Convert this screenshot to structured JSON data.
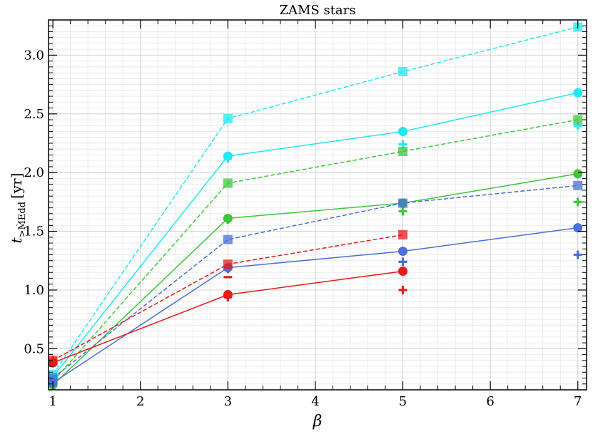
{
  "chart_data": {
    "type": "line",
    "title": "ZAMS stars",
    "xlabel": "β",
    "ylabel": {
      "main": "t",
      "sub": ">Ṁ",
      "sub2": "Edd",
      "unit": "[yr]"
    },
    "xlim": [
      0.95,
      7.1
    ],
    "ylim": [
      0.15,
      3.3
    ],
    "x_ticks": [
      1,
      2,
      3,
      4,
      5,
      6,
      7
    ],
    "y_ticks": [
      0.5,
      1.0,
      1.5,
      2.0,
      2.5,
      3.0
    ],
    "x_tick_labels": [
      "1",
      "2",
      "3",
      "4",
      "5",
      "6",
      "7"
    ],
    "y_tick_labels": [
      "0.5",
      "1.0",
      "1.5",
      "2.0",
      "2.5",
      "3.0"
    ],
    "grid": true,
    "colors": {
      "cyan": "#22e8f0",
      "green": "#3cc83c",
      "blue": "#4a6fd8",
      "red": "#e81a1a"
    },
    "series": [
      {
        "color": "cyan",
        "marker": "square",
        "dash": true,
        "x": [
          1,
          3,
          5,
          7
        ],
        "y": [
          0.28,
          2.46,
          2.86,
          3.24
        ]
      },
      {
        "color": "cyan",
        "marker": "circle",
        "dash": false,
        "x": [
          1,
          3,
          5,
          7
        ],
        "y": [
          0.26,
          2.14,
          2.35,
          2.68
        ]
      },
      {
        "color": "cyan",
        "marker": "plus",
        "dash": false,
        "x": [
          3,
          5,
          7
        ],
        "y": [
          2.12,
          2.24,
          2.4
        ]
      },
      {
        "color": "green",
        "marker": "square",
        "dash": true,
        "x": [
          1,
          3,
          5,
          7
        ],
        "y": [
          0.22,
          1.91,
          2.18,
          2.45
        ]
      },
      {
        "color": "green",
        "marker": "circle",
        "dash": false,
        "x": [
          1,
          3,
          5,
          7
        ],
        "y": [
          0.19,
          1.61,
          1.74,
          1.99
        ]
      },
      {
        "color": "green",
        "marker": "plus",
        "dash": false,
        "x": [
          3,
          5,
          7
        ],
        "y": [
          1.6,
          1.67,
          1.75
        ]
      },
      {
        "color": "blue",
        "marker": "square",
        "dash": true,
        "x": [
          1,
          3,
          5,
          7
        ],
        "y": [
          0.25,
          1.43,
          1.74,
          1.89
        ]
      },
      {
        "color": "blue",
        "marker": "circle",
        "dash": false,
        "x": [
          1,
          3,
          5,
          7
        ],
        "y": [
          0.21,
          1.19,
          1.33,
          1.53
        ]
      },
      {
        "color": "blue",
        "marker": "plus",
        "dash": false,
        "x": [
          3,
          5,
          7
        ],
        "y": [
          1.18,
          1.24,
          1.3
        ]
      },
      {
        "color": "red",
        "marker": "square",
        "dash": true,
        "x": [
          1,
          3,
          5
        ],
        "y": [
          0.4,
          1.22,
          1.47
        ]
      },
      {
        "color": "red",
        "marker": "circle",
        "dash": false,
        "x": [
          1,
          3,
          5
        ],
        "y": [
          0.38,
          0.96,
          1.16
        ]
      },
      {
        "color": "red",
        "marker": "plus",
        "dash": false,
        "x": [
          1,
          3,
          5
        ],
        "y": [
          0.4,
          0.94,
          1.0
        ]
      },
      {
        "color": "red",
        "marker": "minus",
        "dash": false,
        "x": [
          3
        ],
        "y": [
          1.11
        ]
      }
    ]
  }
}
